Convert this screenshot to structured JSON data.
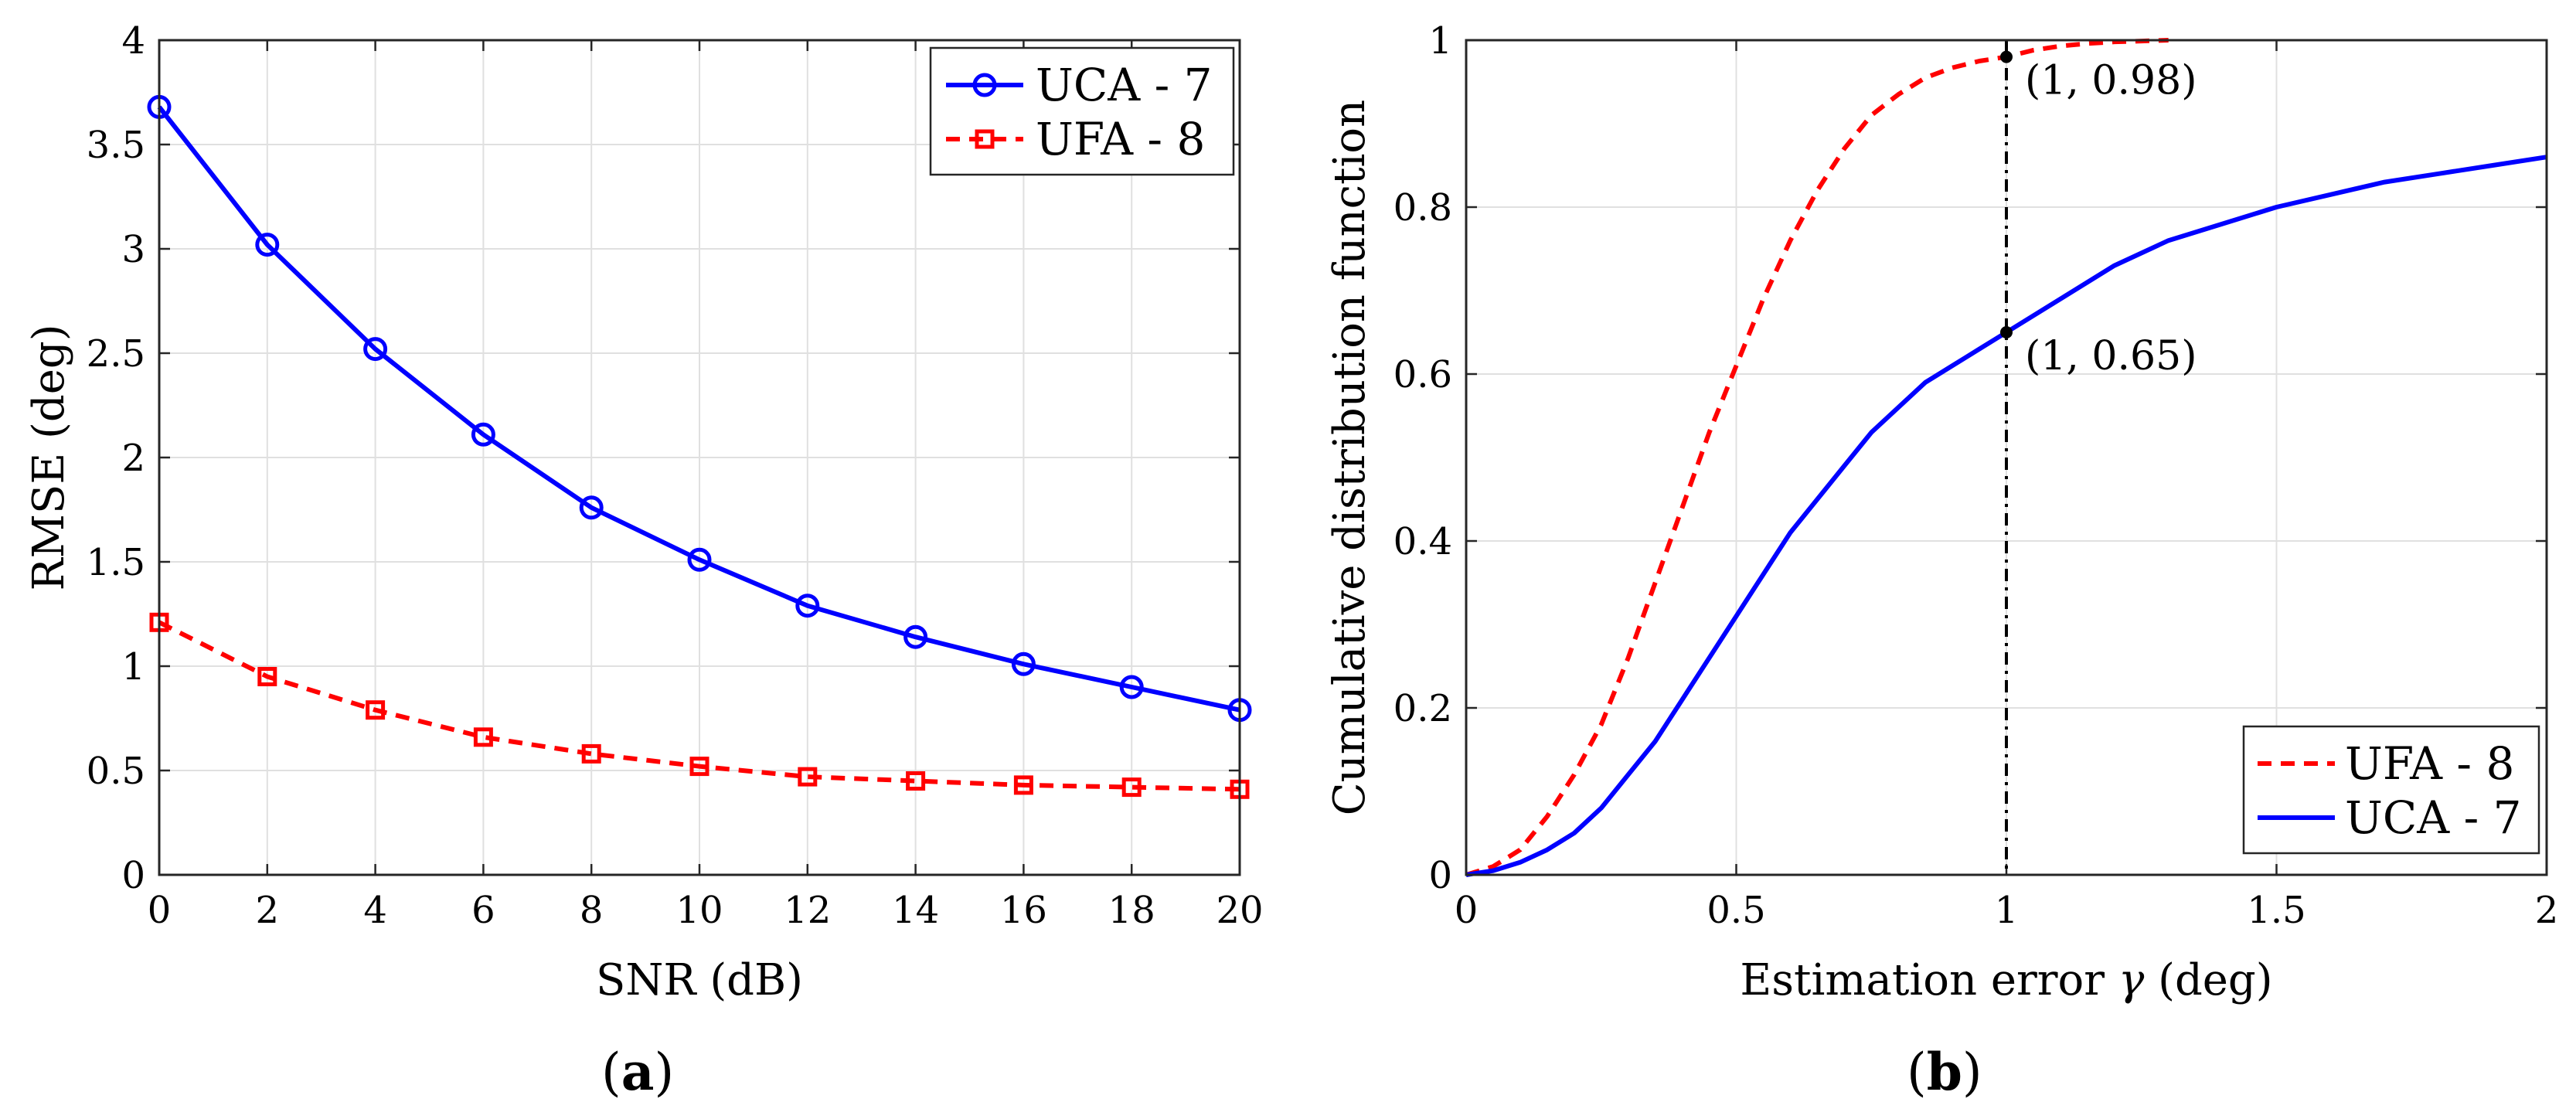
{
  "chart_data": [
    {
      "type": "line",
      "panel_label": "(a)",
      "panel_letter": "a",
      "title": "",
      "xlabel": "SNR (dB)",
      "ylabel": "RMSE (deg)",
      "xlim": [
        0,
        20
      ],
      "ylim": [
        0,
        4
      ],
      "xticks": [
        0,
        2,
        4,
        6,
        8,
        10,
        12,
        14,
        16,
        18,
        20
      ],
      "yticks": [
        0,
        0.5,
        1,
        1.5,
        2,
        2.5,
        3,
        3.5,
        4
      ],
      "grid": true,
      "legend_position": "top-right",
      "x": [
        0,
        2,
        4,
        6,
        8,
        10,
        12,
        14,
        16,
        18,
        20
      ],
      "series": [
        {
          "name": "UCA - 7",
          "color": "#0000ff",
          "line_style": "solid",
          "marker": "circle",
          "values": [
            3.68,
            3.02,
            2.52,
            2.11,
            1.76,
            1.51,
            1.29,
            1.14,
            1.01,
            0.9,
            0.79
          ]
        },
        {
          "name": "UFA - 8",
          "color": "#ff0000",
          "line_style": "dashed",
          "marker": "square",
          "values": [
            1.21,
            0.95,
            0.79,
            0.66,
            0.58,
            0.52,
            0.47,
            0.45,
            0.43,
            0.42,
            0.41
          ]
        }
      ]
    },
    {
      "type": "line",
      "panel_label": "(b)",
      "panel_letter": "b",
      "title": "",
      "xlabel_text": "Estimation error ",
      "xlabel_symbol": "γ",
      "xlabel_unit": " (deg)",
      "ylabel": "Cumulative distribution function",
      "xlim": [
        0,
        2
      ],
      "ylim": [
        0,
        1
      ],
      "xticks": [
        0,
        0.5,
        1,
        1.5,
        2
      ],
      "yticks": [
        0,
        0.2,
        0.4,
        0.6,
        0.8,
        1
      ],
      "grid": true,
      "legend_position": "bottom-right",
      "reference_line_x": 1,
      "series": [
        {
          "name": "UFA - 8",
          "color": "#ff0000",
          "line_style": "dashed",
          "x": [
            0,
            0.05,
            0.1,
            0.15,
            0.2,
            0.25,
            0.3,
            0.35,
            0.4,
            0.45,
            0.5,
            0.55,
            0.6,
            0.65,
            0.7,
            0.75,
            0.8,
            0.85,
            0.9,
            0.95,
            1.0,
            1.05,
            1.1,
            1.15,
            1.2,
            1.25,
            1.3
          ],
          "y": [
            0,
            0.01,
            0.03,
            0.07,
            0.12,
            0.18,
            0.26,
            0.35,
            0.44,
            0.53,
            0.61,
            0.69,
            0.76,
            0.82,
            0.87,
            0.91,
            0.935,
            0.955,
            0.967,
            0.975,
            0.98,
            0.988,
            0.993,
            0.996,
            0.998,
            0.999,
            1.0
          ]
        },
        {
          "name": "UCA - 7",
          "color": "#0000ff",
          "line_style": "solid",
          "x": [
            0,
            0.05,
            0.1,
            0.15,
            0.2,
            0.25,
            0.3,
            0.35,
            0.4,
            0.45,
            0.5,
            0.55,
            0.6,
            0.65,
            0.7,
            0.75,
            0.8,
            0.85,
            0.9,
            0.95,
            1.0,
            1.1,
            1.2,
            1.3,
            1.4,
            1.5,
            1.6,
            1.7,
            1.8,
            1.9,
            2.0
          ],
          "y": [
            0,
            0.005,
            0.015,
            0.03,
            0.05,
            0.08,
            0.12,
            0.16,
            0.21,
            0.26,
            0.31,
            0.36,
            0.41,
            0.45,
            0.49,
            0.53,
            0.56,
            0.59,
            0.61,
            0.63,
            0.65,
            0.69,
            0.73,
            0.76,
            0.78,
            0.8,
            0.815,
            0.83,
            0.84,
            0.85,
            0.86
          ]
        }
      ],
      "annotations": [
        {
          "x": 1,
          "y": 0.98,
          "text": "(1, 0.98)"
        },
        {
          "x": 1,
          "y": 0.65,
          "text": "(1, 0.65)"
        }
      ]
    }
  ]
}
